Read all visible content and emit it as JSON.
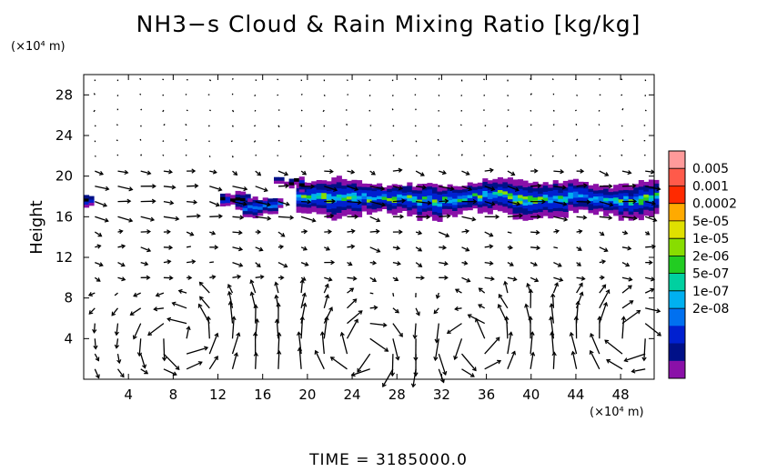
{
  "chart_data": {
    "type": "heatmap",
    "title": "NH3−s Cloud & Rain Mixing Ratio [kg/kg]",
    "ylabel": "Height",
    "y_unit_label": "(×10⁴ m)",
    "x_unit_label": "(×10⁴ m)",
    "xlim": [
      0,
      51
    ],
    "ylim": [
      0,
      30
    ],
    "x_ticks": [
      4,
      8,
      12,
      16,
      20,
      24,
      28,
      32,
      36,
      40,
      44,
      48
    ],
    "y_ticks": [
      4,
      8,
      12,
      16,
      20,
      24,
      28
    ],
    "colorbar": {
      "labels": [
        "0.005",
        "0.001",
        "0.0002",
        "5e-05",
        "1e-05",
        "2e-06",
        "5e-07",
        "1e-07",
        "2e-08"
      ],
      "colors": [
        "#ff9a9a",
        "#ff5a4a",
        "#ff2a00",
        "#ffaa00",
        "#e0e000",
        "#88dd00",
        "#22cc22",
        "#00d0a0",
        "#00b0f0",
        "#0070f0",
        "#0020d0",
        "#001088",
        "#8a10a8"
      ]
    },
    "cloud_regions": [
      {
        "x0": 18.5,
        "x1": 51.0,
        "y0": 15.8,
        "y1": 19.6,
        "level": "1e-07 to 1e-05"
      },
      {
        "x0": 11.5,
        "x1": 17.5,
        "y0": 16.8,
        "y1": 18.6,
        "level": "2e-08 to 1e-07"
      }
    ],
    "wind_vectors": "velocity arrows on a regular grid"
  },
  "time_label": "TIME  =  3185000.0"
}
